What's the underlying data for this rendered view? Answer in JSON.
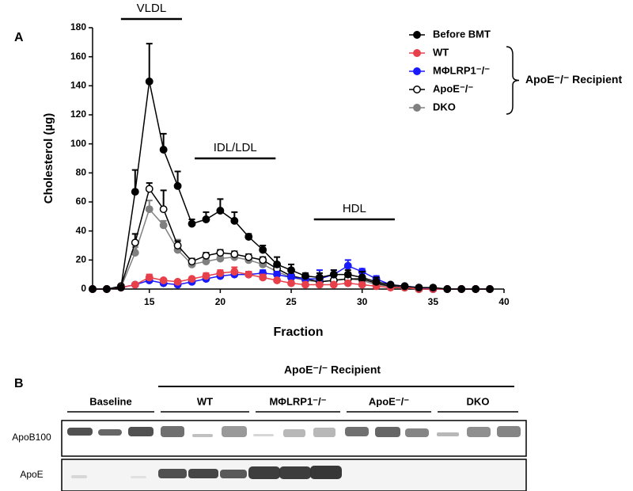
{
  "chart_data": {
    "type": "line",
    "panel_label": "A",
    "x_label": "Fraction",
    "y_label": "Cholesterol (µg)",
    "x": [
      11,
      12,
      13,
      14,
      15,
      16,
      17,
      18,
      19,
      20,
      21,
      22,
      23,
      24,
      25,
      26,
      27,
      28,
      29,
      30,
      31,
      32,
      33,
      34,
      35,
      36,
      37,
      38,
      39
    ],
    "xlim": [
      11,
      40
    ],
    "xticks": [
      15,
      20,
      25,
      30,
      35,
      40
    ],
    "ylim": [
      0,
      180
    ],
    "yticks": [
      0,
      20,
      40,
      60,
      80,
      100,
      120,
      140,
      160,
      180
    ],
    "series": [
      {
        "name": "Before BMT",
        "color": "#000000",
        "fill": "#000000",
        "values": [
          0,
          0,
          1,
          67,
          143,
          96,
          71,
          45,
          48,
          54,
          47,
          36,
          27,
          17,
          13,
          9,
          8,
          10,
          10,
          8,
          5,
          3,
          2,
          1,
          1,
          0,
          0,
          0,
          0
        ],
        "errors": [
          0,
          0,
          0,
          15,
          26,
          11,
          10,
          3,
          5,
          8,
          6,
          2,
          3,
          5,
          4,
          2,
          3,
          3,
          3,
          4,
          3,
          1,
          0,
          0,
          0,
          0,
          0,
          0,
          0
        ]
      },
      {
        "name": "WT",
        "color": "#e8404a",
        "fill": "#e8404a",
        "values": [
          0,
          0,
          1,
          3,
          8,
          6,
          5,
          7,
          9,
          11,
          12,
          10,
          8,
          6,
          4,
          3,
          3,
          3,
          4,
          3,
          2,
          1,
          1,
          0,
          0,
          0,
          0,
          0,
          0
        ],
        "errors": [
          0,
          0,
          0,
          1,
          2,
          1,
          1,
          1,
          2,
          2,
          3,
          2,
          2,
          1,
          1,
          1,
          1,
          1,
          1,
          1,
          1,
          0,
          0,
          0,
          0,
          0,
          0,
          0,
          0
        ]
      },
      {
        "name": "MΦLRP1⁻/⁻",
        "color": "#1a1aff",
        "fill": "#1a1aff",
        "values": [
          0,
          0,
          1,
          3,
          6,
          4,
          3,
          5,
          7,
          9,
          10,
          10,
          11,
          10,
          8,
          7,
          7,
          10,
          16,
          12,
          7,
          3,
          2,
          1,
          0,
          0,
          0,
          0,
          0
        ],
        "errors": [
          0,
          0,
          0,
          1,
          1,
          1,
          1,
          1,
          2,
          2,
          2,
          2,
          2,
          2,
          2,
          2,
          6,
          3,
          4,
          2,
          2,
          1,
          0,
          0,
          0,
          0,
          0,
          0,
          0
        ]
      },
      {
        "name": "ApoE⁻/⁻",
        "color": "#000000",
        "fill": "#ffffff",
        "values": [
          0,
          0,
          2,
          32,
          69,
          55,
          30,
          19,
          23,
          25,
          24,
          22,
          20,
          14,
          9,
          7,
          5,
          6,
          7,
          7,
          4,
          2,
          1,
          0,
          0,
          0,
          0,
          0,
          0
        ],
        "errors": [
          0,
          0,
          0,
          6,
          4,
          13,
          3,
          2,
          2,
          2,
          2,
          2,
          2,
          2,
          1,
          1,
          1,
          1,
          1,
          1,
          1,
          0,
          0,
          0,
          0,
          0,
          0,
          0,
          0
        ]
      },
      {
        "name": "DKO",
        "color": "#808080",
        "fill": "#808080",
        "values": [
          0,
          0,
          1,
          25,
          55,
          44,
          27,
          17,
          19,
          21,
          22,
          20,
          17,
          12,
          8,
          6,
          5,
          6,
          7,
          6,
          3,
          2,
          1,
          0,
          0,
          0,
          0,
          0,
          0
        ],
        "errors": [
          0,
          0,
          0,
          4,
          6,
          3,
          7,
          2,
          2,
          2,
          2,
          2,
          2,
          2,
          1,
          1,
          1,
          1,
          1,
          1,
          1,
          0,
          0,
          0,
          0,
          0,
          0,
          0,
          0
        ]
      }
    ],
    "legend_group": "ApoE⁻/⁻ Recipient",
    "annotations": [
      {
        "text": "VLDL",
        "range": [
          13,
          17.3
        ],
        "level": 186
      },
      {
        "text": "IDL/LDL",
        "range": [
          18.2,
          23.9
        ],
        "level": 90
      },
      {
        "text": "HDL",
        "range": [
          26.6,
          32.3
        ],
        "level": 48
      }
    ]
  },
  "blot": {
    "panel_label": "B",
    "recipient_label": "ApoE⁻/⁻ Recipient",
    "groups": [
      "Baseline",
      "WT",
      "MΦLRP1⁻/⁻",
      "ApoE⁻/⁻",
      "DKO"
    ],
    "rows": [
      "ApoB100",
      "ApoE"
    ]
  }
}
